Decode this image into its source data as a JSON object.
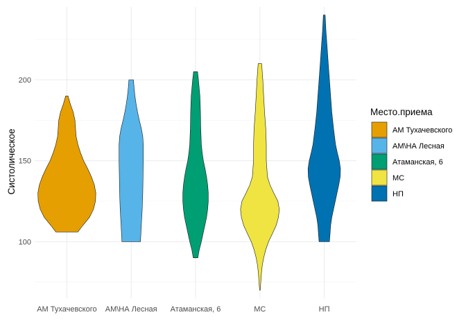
{
  "chart_data": {
    "type": "violin",
    "title": "",
    "xlabel": "",
    "ylabel": "Систолическое",
    "ylim": [
      65,
      245
    ],
    "y_ticks": [
      100,
      150,
      200
    ],
    "grid": true,
    "legend": {
      "title": "Место.приема",
      "position": "right"
    },
    "categories": [
      "АМ Тухачевского",
      "АМ\\НА Лесная",
      "Атаманская, 6",
      "МС",
      "НП"
    ],
    "series": [
      {
        "name": "АМ Тухачевского",
        "color": "#E69F00",
        "min": 106,
        "max": 190,
        "density": [
          [
            106,
            0.38
          ],
          [
            110,
            0.55
          ],
          [
            115,
            0.78
          ],
          [
            120,
            0.92
          ],
          [
            125,
            0.99
          ],
          [
            130,
            1.0
          ],
          [
            135,
            0.95
          ],
          [
            140,
            0.85
          ],
          [
            145,
            0.72
          ],
          [
            150,
            0.58
          ],
          [
            155,
            0.47
          ],
          [
            160,
            0.38
          ],
          [
            165,
            0.32
          ],
          [
            170,
            0.3
          ],
          [
            175,
            0.28
          ],
          [
            180,
            0.22
          ],
          [
            185,
            0.12
          ],
          [
            190,
            0.04
          ]
        ]
      },
      {
        "name": "АМ\\НА Лесная",
        "color": "#56B4E9",
        "min": 100,
        "max": 200,
        "density": [
          [
            100,
            0.32
          ],
          [
            110,
            0.35
          ],
          [
            120,
            0.38
          ],
          [
            130,
            0.4
          ],
          [
            140,
            0.41
          ],
          [
            150,
            0.42
          ],
          [
            160,
            0.42
          ],
          [
            165,
            0.4
          ],
          [
            170,
            0.35
          ],
          [
            175,
            0.28
          ],
          [
            180,
            0.22
          ],
          [
            185,
            0.17
          ],
          [
            190,
            0.13
          ],
          [
            195,
            0.1
          ],
          [
            200,
            0.08
          ]
        ]
      },
      {
        "name": "Атаманская, 6",
        "color": "#009E73",
        "min": 90,
        "max": 205,
        "density": [
          [
            90,
            0.08
          ],
          [
            95,
            0.13
          ],
          [
            100,
            0.2
          ],
          [
            105,
            0.26
          ],
          [
            110,
            0.32
          ],
          [
            115,
            0.38
          ],
          [
            120,
            0.42
          ],
          [
            125,
            0.44
          ],
          [
            130,
            0.44
          ],
          [
            135,
            0.42
          ],
          [
            140,
            0.38
          ],
          [
            145,
            0.33
          ],
          [
            150,
            0.27
          ],
          [
            155,
            0.23
          ],
          [
            160,
            0.2
          ],
          [
            170,
            0.18
          ],
          [
            180,
            0.17
          ],
          [
            190,
            0.15
          ],
          [
            200,
            0.1
          ],
          [
            205,
            0.07
          ]
        ]
      },
      {
        "name": "МС",
        "color": "#F0E442",
        "min": 70,
        "max": 210,
        "density": [
          [
            70,
            0.01
          ],
          [
            75,
            0.03
          ],
          [
            80,
            0.05
          ],
          [
            85,
            0.08
          ],
          [
            90,
            0.13
          ],
          [
            95,
            0.2
          ],
          [
            100,
            0.3
          ],
          [
            105,
            0.43
          ],
          [
            110,
            0.56
          ],
          [
            115,
            0.64
          ],
          [
            120,
            0.67
          ],
          [
            125,
            0.62
          ],
          [
            130,
            0.48
          ],
          [
            135,
            0.35
          ],
          [
            140,
            0.26
          ],
          [
            150,
            0.22
          ],
          [
            160,
            0.22
          ],
          [
            170,
            0.2
          ],
          [
            180,
            0.16
          ],
          [
            190,
            0.13
          ],
          [
            200,
            0.1
          ],
          [
            210,
            0.06
          ]
        ]
      },
      {
        "name": "НП",
        "color": "#0072B2",
        "min": 100,
        "max": 240,
        "density": [
          [
            100,
            0.18
          ],
          [
            105,
            0.2
          ],
          [
            110,
            0.22
          ],
          [
            115,
            0.26
          ],
          [
            120,
            0.32
          ],
          [
            125,
            0.38
          ],
          [
            130,
            0.44
          ],
          [
            135,
            0.5
          ],
          [
            140,
            0.55
          ],
          [
            145,
            0.56
          ],
          [
            150,
            0.52
          ],
          [
            155,
            0.45
          ],
          [
            160,
            0.39
          ],
          [
            170,
            0.32
          ],
          [
            180,
            0.26
          ],
          [
            190,
            0.22
          ],
          [
            200,
            0.18
          ],
          [
            210,
            0.14
          ],
          [
            220,
            0.1
          ],
          [
            230,
            0.06
          ],
          [
            240,
            0.03
          ]
        ]
      }
    ]
  }
}
